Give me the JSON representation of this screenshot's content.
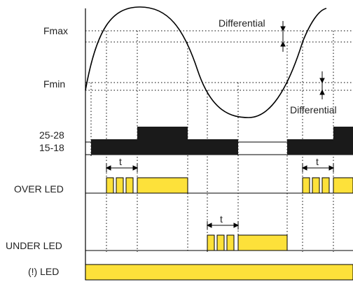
{
  "diagram": {
    "levels": {
      "fmax": "Fmax",
      "fmin": "Fmin"
    },
    "differential_label": "Differential",
    "rows": {
      "relay_25_28": "25-28",
      "relay_15_18": "15-18",
      "over_led": "OVER LED",
      "under_led": "UNDER LED",
      "power_led": "(!) LED"
    },
    "delay_label": "t"
  },
  "colors": {
    "led_yellow": "#fde13a",
    "relay_black": "#1a1a1a",
    "line": "#000000"
  }
}
